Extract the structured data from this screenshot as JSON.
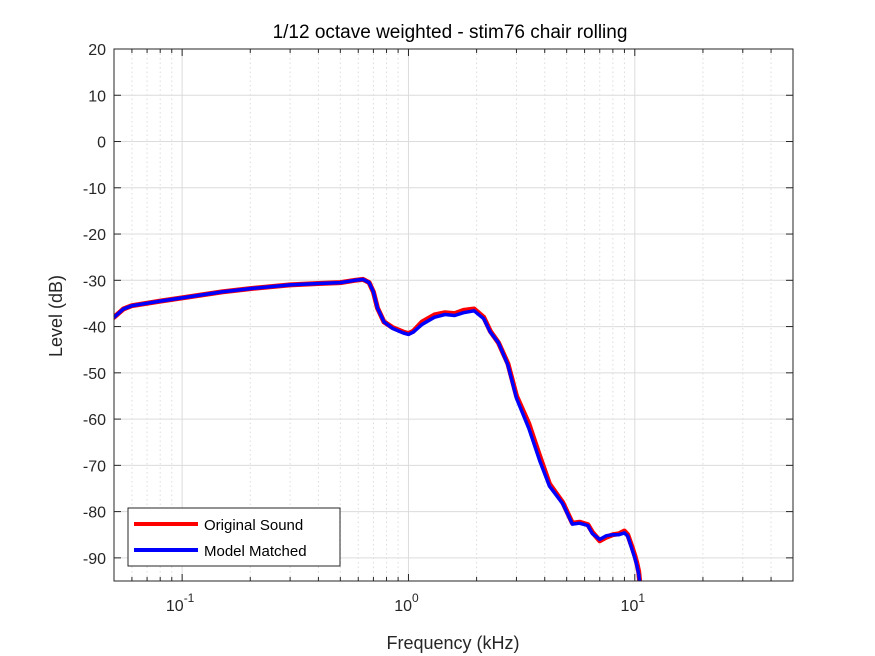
{
  "chart_data": {
    "type": "line",
    "title": "1/12 octave weighted - stim76 chair rolling",
    "xlabel": "Frequency (kHz)",
    "ylabel": "Level (dB)",
    "xscale": "log",
    "xlim": [
      0.05,
      50
    ],
    "ylim": [
      -95,
      20
    ],
    "xticks": [
      0.1,
      1,
      10
    ],
    "xtick_labels": [
      {
        "base": "10",
        "exp": "-1"
      },
      {
        "base": "10",
        "exp": "0"
      },
      {
        "base": "10",
        "exp": "1"
      }
    ],
    "yticks": [
      20,
      10,
      0,
      -10,
      -20,
      -30,
      -40,
      -50,
      -60,
      -70,
      -80,
      -90
    ],
    "ytick_labels": [
      "20",
      "10",
      "0",
      "-10",
      "-20",
      "-30",
      "-40",
      "-50",
      "-60",
      "-70",
      "-80",
      "-90"
    ],
    "grid": true,
    "minor_grid": true,
    "legend_position": "bottom-left",
    "series": [
      {
        "name": "Original Sound",
        "color": "#ff0000",
        "x": [
          0.05,
          0.055,
          0.06,
          0.08,
          0.1,
          0.15,
          0.2,
          0.3,
          0.4,
          0.5,
          0.58,
          0.63,
          0.67,
          0.7,
          0.73,
          0.78,
          0.85,
          0.95,
          1.0,
          1.05,
          1.15,
          1.3,
          1.45,
          1.6,
          1.75,
          1.95,
          2.15,
          2.3,
          2.5,
          2.75,
          3.0,
          3.4,
          3.8,
          4.2,
          4.8,
          5.3,
          5.7,
          6.2,
          6.5,
          7.0,
          7.5,
          8.0,
          8.5,
          9.0,
          9.3,
          9.7,
          10.0,
          10.2,
          10.4,
          10.5
        ],
        "values": [
          -38,
          -36.2,
          -35.5,
          -34.5,
          -33.8,
          -32.5,
          -31.8,
          -31,
          -30.7,
          -30.5,
          -30,
          -29.8,
          -30.5,
          -32.5,
          -36,
          -39,
          -40.2,
          -41.2,
          -41.5,
          -41,
          -39,
          -37.5,
          -37,
          -37.2,
          -36.5,
          -36.2,
          -38,
          -41,
          -43.5,
          -48,
          -55,
          -61,
          -68,
          -74,
          -78,
          -82.5,
          -82.3,
          -82.8,
          -84.5,
          -86.3,
          -85.5,
          -85,
          -84.8,
          -84.2,
          -85,
          -87.5,
          -89.5,
          -91,
          -93,
          -95
        ]
      },
      {
        "name": "Model Matched",
        "color": "#0000ff",
        "x": [
          0.05,
          0.055,
          0.06,
          0.08,
          0.1,
          0.15,
          0.2,
          0.3,
          0.4,
          0.5,
          0.58,
          0.63,
          0.67,
          0.7,
          0.73,
          0.78,
          0.85,
          0.95,
          1.0,
          1.05,
          1.15,
          1.3,
          1.45,
          1.6,
          1.75,
          1.95,
          2.15,
          2.3,
          2.5,
          2.75,
          3.0,
          3.4,
          3.8,
          4.2,
          4.8,
          5.3,
          5.7,
          6.2,
          6.5,
          7.0,
          7.5,
          8.0,
          8.5,
          9.0,
          9.3,
          9.7,
          10.0,
          10.2,
          10.4,
          10.5
        ],
        "values": [
          -38,
          -36.2,
          -35.5,
          -34.5,
          -33.8,
          -32.5,
          -31.8,
          -31,
          -30.7,
          -30.5,
          -30,
          -29.8,
          -30.5,
          -32.5,
          -36,
          -39,
          -40.4,
          -41.4,
          -41.7,
          -41.2,
          -39.5,
          -38,
          -37.4,
          -37.6,
          -37,
          -36.6,
          -38.3,
          -41.2,
          -43.5,
          -48.3,
          -55.5,
          -62,
          -69,
          -74.5,
          -78.3,
          -82.7,
          -82.5,
          -83,
          -84.8,
          -86,
          -85.2,
          -85,
          -85,
          -84.6,
          -85.3,
          -88,
          -90,
          -91.5,
          -93.5,
          -95
        ]
      }
    ]
  }
}
